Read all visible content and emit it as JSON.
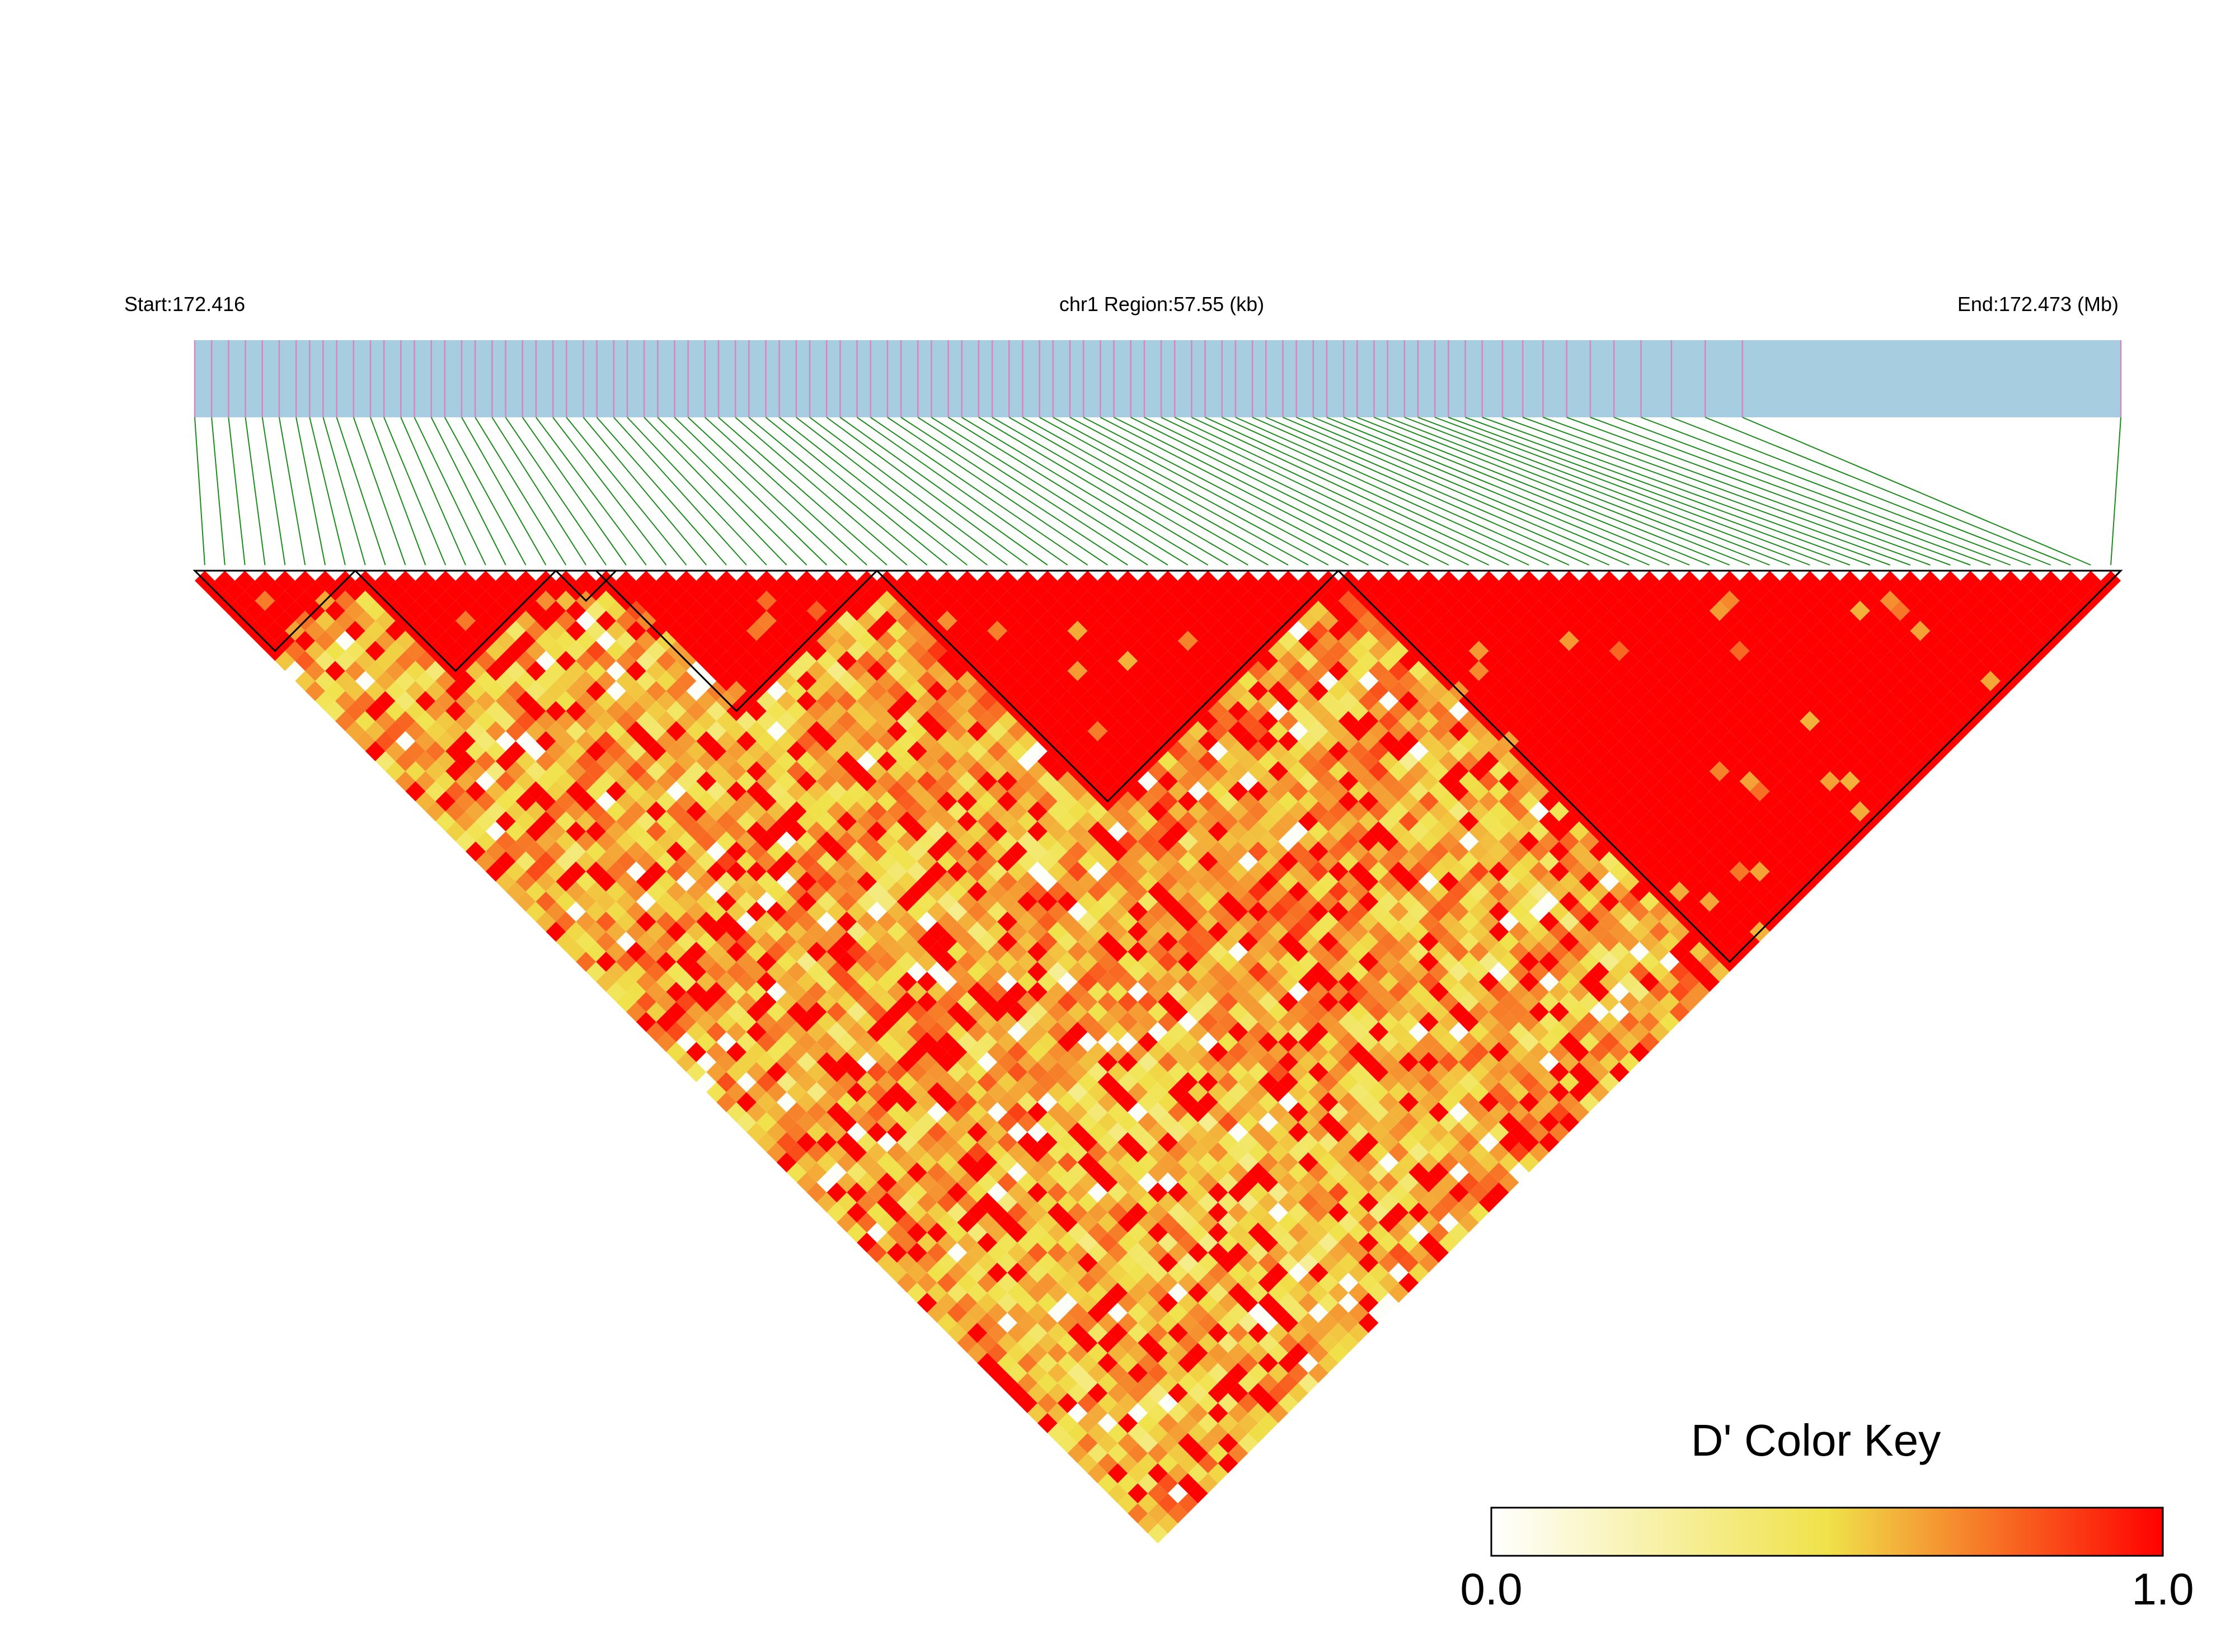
{
  "header": {
    "start_label": "Start:172.416",
    "region_label": "chr1 Region:57.55 (kb)",
    "end_label": "End:172.473 (Mb)"
  },
  "chart_data": {
    "type": "heatmap",
    "title": "",
    "description_of_measure": "D'",
    "chromosome": "chr1",
    "region_start_mb": 172.416,
    "region_end_mb": 172.473,
    "region_length_kb": 57.55,
    "snp_count": 96,
    "snp_positions_mb": [
      172.416,
      172.4165,
      172.417,
      172.4175,
      172.418,
      172.4185,
      172.419,
      172.4194,
      172.4198,
      172.4202,
      172.4207,
      172.4212,
      172.4216,
      172.4221,
      172.4225,
      172.423,
      172.4234,
      172.4239,
      172.4243,
      172.4248,
      172.4252,
      172.4257,
      172.4261,
      172.4266,
      172.427,
      172.4275,
      172.4279,
      172.4284,
      172.4288,
      172.4293,
      172.4297,
      172.4302,
      172.4306,
      172.4311,
      172.4315,
      172.432,
      172.4324,
      172.4329,
      172.4333,
      172.4338,
      172.4342,
      172.4347,
      172.4351,
      172.4356,
      172.436,
      172.4365,
      172.4369,
      172.4374,
      172.4378,
      172.4383,
      172.4387,
      172.4392,
      172.4396,
      172.4401,
      172.4405,
      172.441,
      172.4414,
      172.4419,
      172.4423,
      172.4428,
      172.4432,
      172.4437,
      172.4441,
      172.4446,
      172.445,
      172.4455,
      172.4459,
      172.4464,
      172.4468,
      172.4473,
      172.4477,
      172.4482,
      172.4486,
      172.4491,
      172.4495,
      172.45,
      172.4504,
      172.4509,
      172.4513,
      172.4518,
      172.4522,
      172.4527,
      172.4531,
      172.4536,
      172.4541,
      172.4547,
      172.4553,
      172.4559,
      172.4566,
      172.4573,
      172.458,
      172.4588,
      172.4597,
      172.4607,
      172.4618,
      172.473
    ],
    "ld_blocks": [
      {
        "start_index": 0,
        "end_index": 7
      },
      {
        "start_index": 8,
        "end_index": 17
      },
      {
        "start_index": 18,
        "end_index": 20
      },
      {
        "start_index": 20,
        "end_index": 33
      },
      {
        "start_index": 34,
        "end_index": 56
      },
      {
        "start_index": 57,
        "end_index": 95
      }
    ],
    "color_key": {
      "title": "D' Color Key",
      "min_label": "0.0",
      "max_label": "1.0",
      "range": [
        0,
        1
      ],
      "stops": [
        "#ffffff",
        "#f0e24a",
        "#ff0000"
      ]
    },
    "colors": {
      "track_fill": "#a7cde0",
      "snp_tick": "#d985c3",
      "connector": "#1a8c1a",
      "block_outline": "#000000"
    }
  }
}
